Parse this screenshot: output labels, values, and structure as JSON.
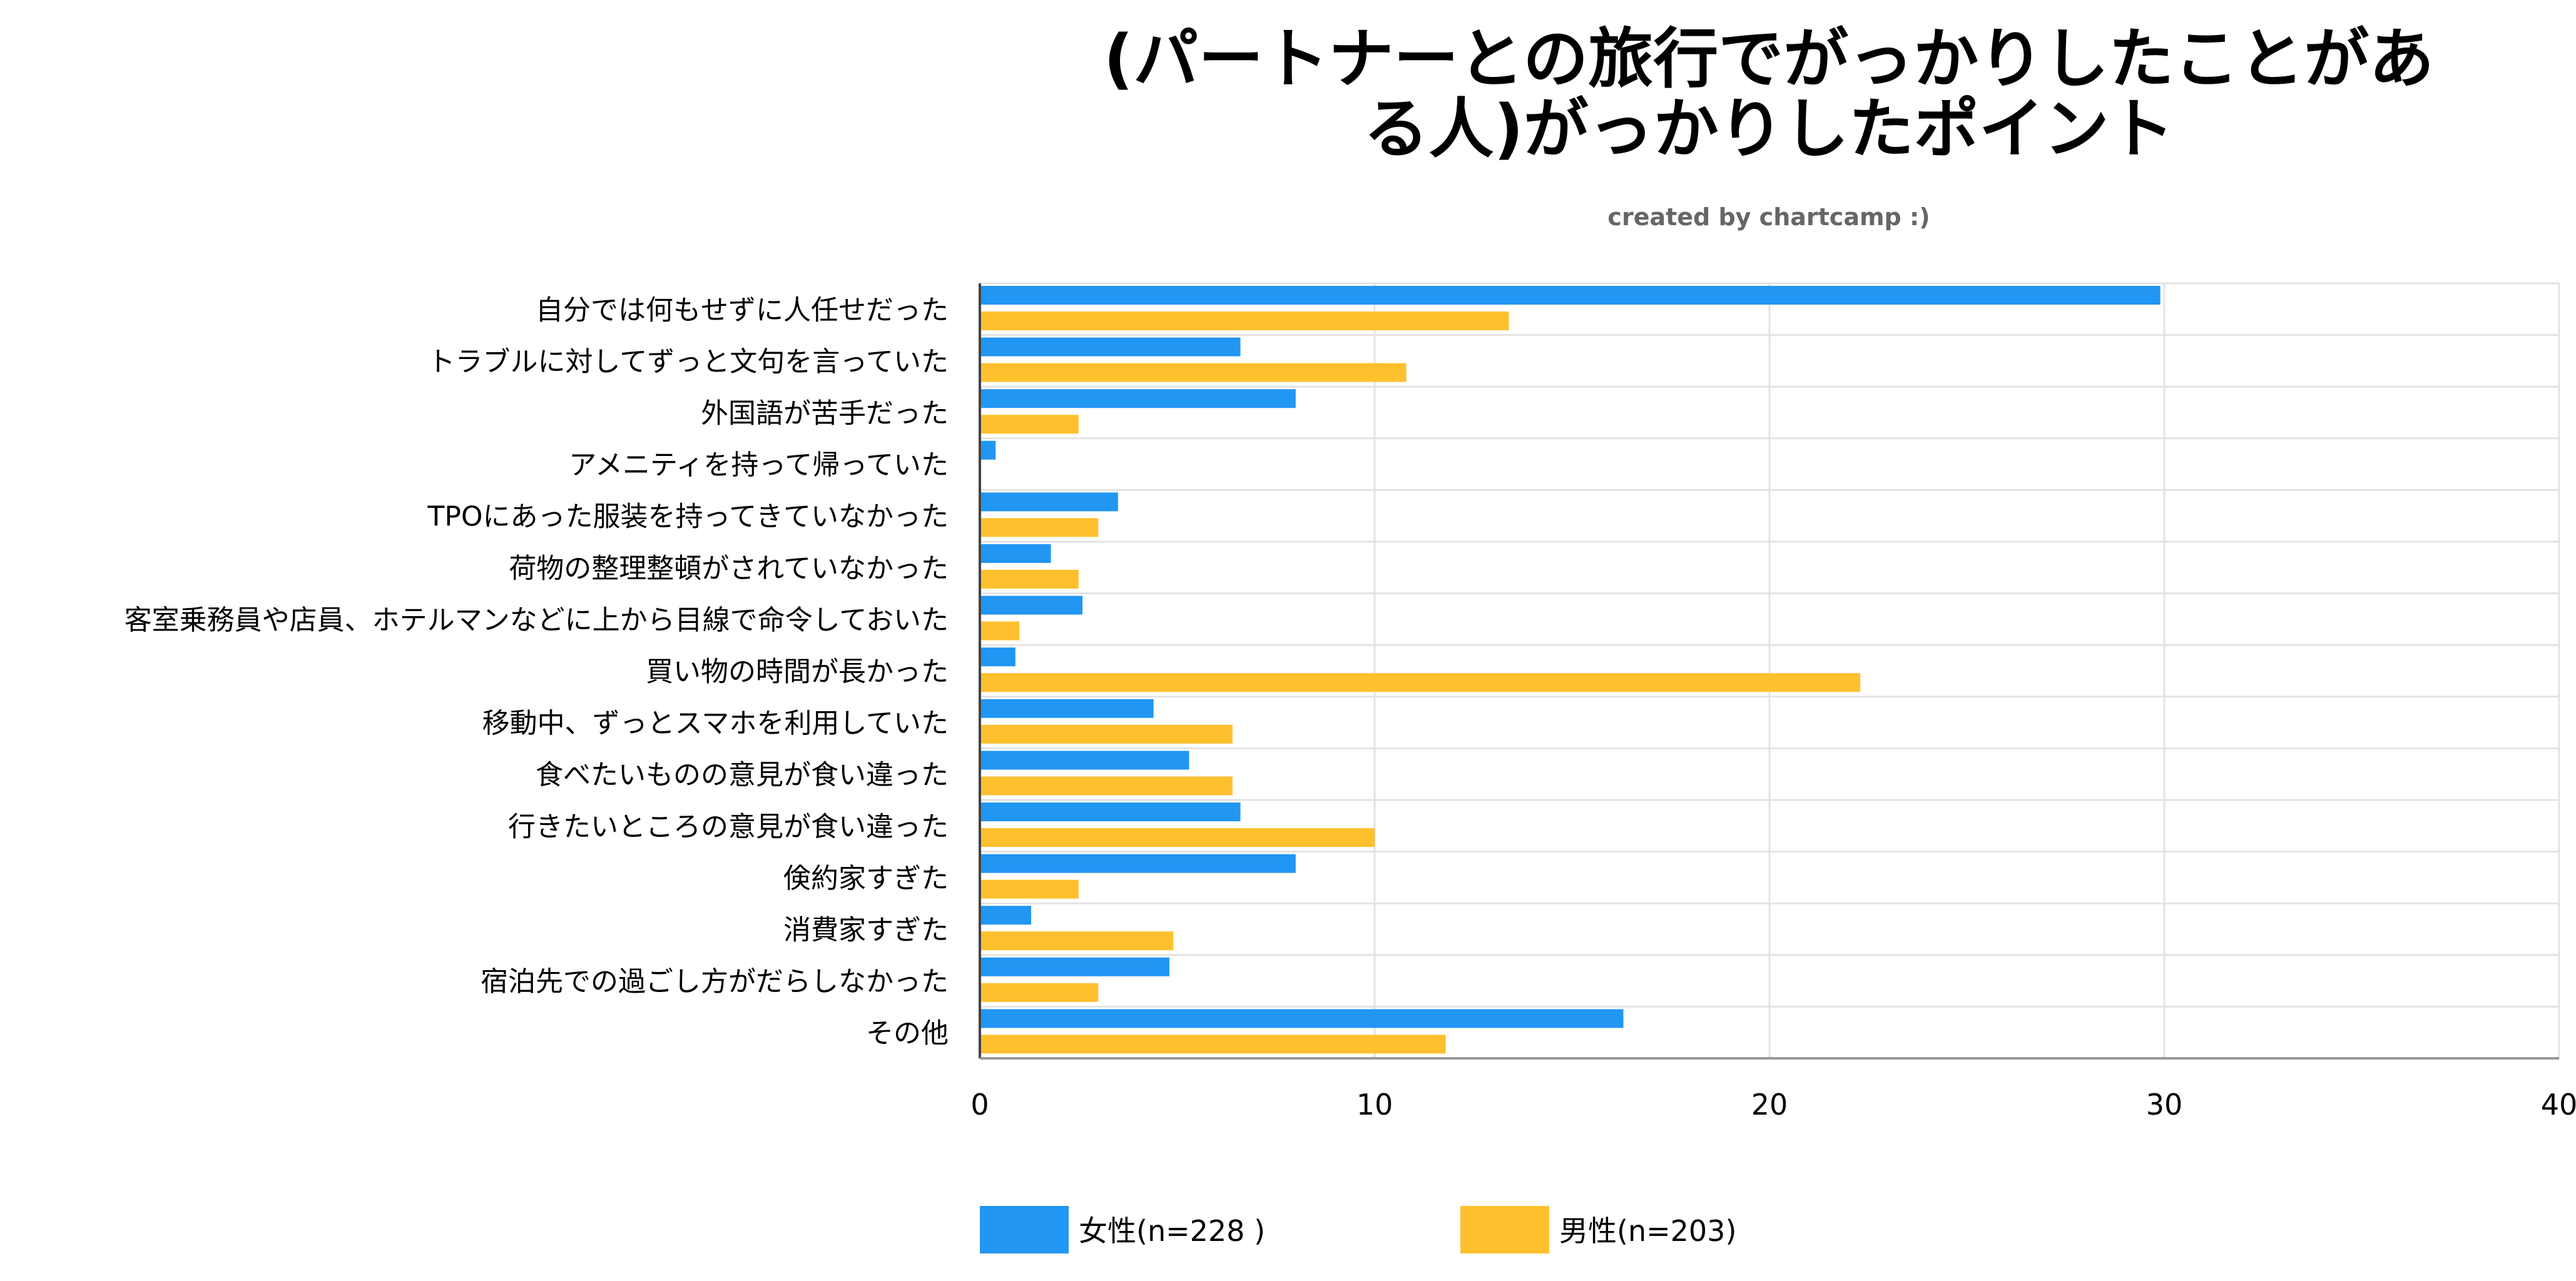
{
  "chart_data": {
    "type": "bar",
    "orientation": "horizontal",
    "title_lines": [
      "(パートナーとの旅行でがっかりしたことがあ",
      "る人)がっかりしたポイント"
    ],
    "subtitle": "created by chartcamp :)",
    "categories": [
      "自分では何もせずに人任せだった",
      "トラブルに対してずっと文句を言っていた",
      "外国語が苦手だった",
      "アメニティを持って帰っていた",
      "TPOにあった服装を持ってきていなかった",
      "荷物の整理整頓がされていなかった",
      "客室乗務員や店員、ホテルマンなどに上から目線で命令しておいた",
      "買い物の時間が長かった",
      "移動中、ずっとスマホを利用していた",
      "食べたいものの意見が食い違った",
      "行きたいところの意見が食い違った",
      "倹約家すぎた",
      "消費家すぎた",
      "宿泊先での過ごし方がだらしなかった",
      "その他"
    ],
    "series": [
      {
        "name": "女性(n=228 )",
        "color": "#2196f3",
        "values": [
          29.9,
          6.6,
          8.0,
          0.4,
          3.5,
          1.8,
          2.6,
          0.9,
          4.4,
          5.3,
          6.6,
          8.0,
          1.3,
          4.8,
          16.3
        ]
      },
      {
        "name": "男性(n=203)",
        "color": "#ffc02e",
        "values": [
          13.4,
          10.8,
          2.5,
          0.0,
          3.0,
          2.5,
          1.0,
          22.3,
          6.4,
          6.4,
          10.0,
          2.5,
          4.9,
          3.0,
          11.8
        ]
      }
    ],
    "xlim": [
      0,
      40
    ],
    "xticks": [
      0,
      10,
      20,
      30,
      40
    ],
    "grid": true,
    "legend_position": "bottom-left"
  }
}
